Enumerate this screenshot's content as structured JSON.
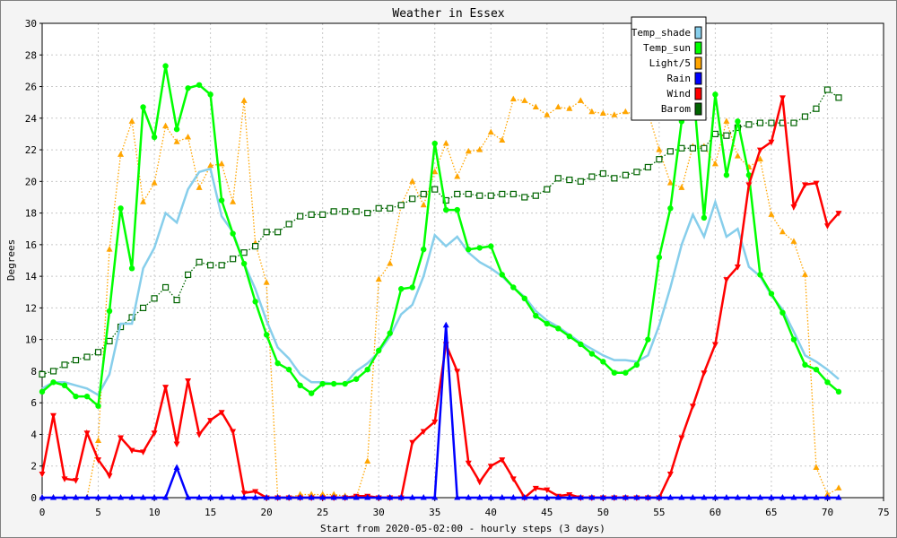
{
  "chart_data": {
    "type": "line",
    "title": "Weather in Essex",
    "xlabel": "Start from 2020-05-02:00 - hourly steps (3 days)",
    "ylabel": "Degrees",
    "xlim": [
      0,
      75
    ],
    "ylim": [
      0,
      30
    ],
    "x_ticks": [
      0,
      5,
      10,
      15,
      20,
      25,
      30,
      35,
      40,
      45,
      50,
      55,
      60,
      65,
      70,
      75
    ],
    "y_ticks": [
      0,
      2,
      4,
      6,
      8,
      10,
      12,
      14,
      16,
      18,
      20,
      22,
      24,
      26,
      28,
      30
    ],
    "grid": true,
    "legend_position": "top-right",
    "x": [
      0,
      1,
      2,
      3,
      4,
      5,
      6,
      7,
      8,
      9,
      10,
      11,
      12,
      13,
      14,
      15,
      16,
      17,
      18,
      19,
      20,
      21,
      22,
      23,
      24,
      25,
      26,
      27,
      28,
      29,
      30,
      31,
      32,
      33,
      34,
      35,
      36,
      37,
      38,
      39,
      40,
      41,
      42,
      43,
      44,
      45,
      46,
      47,
      48,
      49,
      50,
      51,
      52,
      53,
      54,
      55,
      56,
      57,
      58,
      59,
      60,
      61,
      62,
      63,
      64,
      65,
      66,
      67,
      68,
      69,
      70,
      71
    ],
    "series": [
      {
        "name": "Temp_shade",
        "color": "#87ceeb",
        "marker": "none",
        "line": "solid",
        "values": [
          6.9,
          7.3,
          7.3,
          7.1,
          6.9,
          6.5,
          7.8,
          11,
          11,
          14.5,
          15.8,
          18,
          17.4,
          19.5,
          20.6,
          20.8,
          17.8,
          16.8,
          14.8,
          13.2,
          11.2,
          9.5,
          8.8,
          7.8,
          7.3,
          7.3,
          7.2,
          7.2,
          8,
          8.5,
          9.2,
          10.2,
          11.6,
          12.2,
          14,
          16.6,
          15.9,
          16.5,
          15.5,
          14.9,
          14.5,
          14,
          13.3,
          12.7,
          11.8,
          11.2,
          10.8,
          10.3,
          9.8,
          9.4,
          9,
          8.7,
          8.7,
          8.6,
          9,
          10.9,
          13.3,
          16,
          17.9,
          16.5,
          18.7,
          16.5,
          17,
          14.6,
          14,
          12.8,
          11.9,
          10.5,
          9,
          8.6,
          8.1,
          7.5
        ]
      },
      {
        "name": "Temp_sun",
        "color": "#00ff00",
        "marker": "circle",
        "line": "solid",
        "values": [
          6.7,
          7.3,
          7.1,
          6.4,
          6.4,
          5.8,
          11.8,
          18.3,
          14.5,
          24.7,
          22.8,
          27.3,
          23.3,
          25.9,
          26.1,
          25.5,
          18.8,
          16.7,
          14.8,
          12.4,
          10.3,
          8.5,
          8.1,
          7.1,
          6.6,
          7.2,
          7.2,
          7.2,
          7.5,
          8.1,
          9.3,
          10.4,
          13.2,
          13.3,
          15.7,
          22.4,
          18.2,
          18.2,
          15.7,
          15.8,
          15.9,
          14.1,
          13.3,
          12.6,
          11.5,
          11,
          10.7,
          10.2,
          9.7,
          9.1,
          8.6,
          7.9,
          7.9,
          8.4,
          10,
          15.2,
          18.3,
          23.8,
          26.2,
          17.7,
          25.5,
          20.4,
          23.8,
          20.4,
          14.1,
          12.9,
          11.7,
          10,
          8.4,
          8.1,
          7.3,
          6.7
        ]
      },
      {
        "name": "Light/5",
        "color": "#ffa500",
        "marker": "triangle",
        "line": "dotted",
        "values": [
          0,
          0,
          0,
          0,
          0,
          3.6,
          15.7,
          21.7,
          23.8,
          18.7,
          19.9,
          23.5,
          22.5,
          22.8,
          19.6,
          21,
          21.1,
          18.7,
          25.1,
          16.1,
          13.6,
          0,
          0,
          0.2,
          0.2,
          0.2,
          0.2,
          0.1,
          0,
          2.3,
          13.8,
          14.8,
          18.5,
          20,
          18.5,
          20.6,
          22.4,
          20.3,
          21.9,
          22,
          23.1,
          22.6,
          25.2,
          25.1,
          24.7,
          24.2,
          24.7,
          24.6,
          25.1,
          24.4,
          24.3,
          24.2,
          24.4,
          24.2,
          24.4,
          22,
          19.9,
          19.6,
          22.2,
          22.2,
          21.1,
          23.8,
          21.6,
          20.9,
          21.4,
          17.9,
          16.8,
          16.2,
          14.1,
          1.9,
          0.2,
          0.6
        ]
      },
      {
        "name": "Rain",
        "color": "#0000ff",
        "marker": "triangle",
        "line": "solid",
        "values": [
          0,
          0,
          0,
          0,
          0,
          0,
          0,
          0,
          0,
          0,
          0,
          0,
          1.9,
          0,
          0,
          0,
          0,
          0,
          0,
          0,
          0,
          0,
          0,
          0,
          0,
          0,
          0,
          0,
          0,
          0,
          0,
          0,
          0,
          0,
          0,
          0,
          10.9,
          0,
          0,
          0,
          0,
          0,
          0,
          0,
          0,
          0,
          0,
          0,
          0,
          0,
          0,
          0,
          0,
          0,
          0,
          0,
          0,
          0,
          0,
          0,
          0,
          0,
          0,
          0,
          0,
          0,
          0,
          0,
          0,
          0,
          0,
          0
        ]
      },
      {
        "name": "Wind",
        "color": "#ff0000",
        "marker": "triangle-down",
        "line": "solid",
        "values": [
          1.5,
          5.2,
          1.2,
          1.1,
          4.1,
          2.4,
          1.4,
          3.8,
          3,
          2.9,
          4.1,
          7,
          3.4,
          7.4,
          4,
          4.9,
          5.4,
          4.2,
          0.3,
          0.4,
          0,
          0,
          0,
          0,
          0,
          0,
          0,
          0,
          0.1,
          0.1,
          0,
          0,
          0,
          3.5,
          4.2,
          4.8,
          9.7,
          8,
          2.2,
          1,
          2,
          2.4,
          1.2,
          0,
          0.6,
          0.5,
          0.1,
          0.2,
          0,
          0,
          0,
          0,
          0,
          0,
          0,
          0,
          1.5,
          3.8,
          5.8,
          7.9,
          9.7,
          13.8,
          14.6,
          19.8,
          22,
          22.5,
          25.3,
          18.4,
          19.8,
          19.9,
          17.2,
          18
        ]
      },
      {
        "name": "Barom",
        "color": "#006400",
        "marker": "square",
        "line": "dotted",
        "values": [
          7.8,
          8,
          8.4,
          8.7,
          8.9,
          9.2,
          9.9,
          10.8,
          11.4,
          12,
          12.6,
          13.3,
          12.5,
          14.1,
          14.9,
          14.7,
          14.7,
          15.1,
          15.5,
          15.9,
          16.8,
          16.8,
          17.3,
          17.8,
          17.9,
          17.9,
          18.1,
          18.1,
          18.1,
          18,
          18.3,
          18.3,
          18.5,
          18.9,
          19.2,
          19.5,
          18.8,
          19.2,
          19.2,
          19.1,
          19.1,
          19.2,
          19.2,
          19,
          19.1,
          19.5,
          20.2,
          20.1,
          20,
          20.3,
          20.5,
          20.2,
          20.4,
          20.6,
          20.9,
          21.4,
          21.9,
          22.1,
          22.1,
          22.1,
          23,
          22.9,
          23.4,
          23.6,
          23.7,
          23.7,
          23.7,
          23.7,
          24.1,
          24.6,
          25.8,
          25.3
        ]
      }
    ]
  }
}
